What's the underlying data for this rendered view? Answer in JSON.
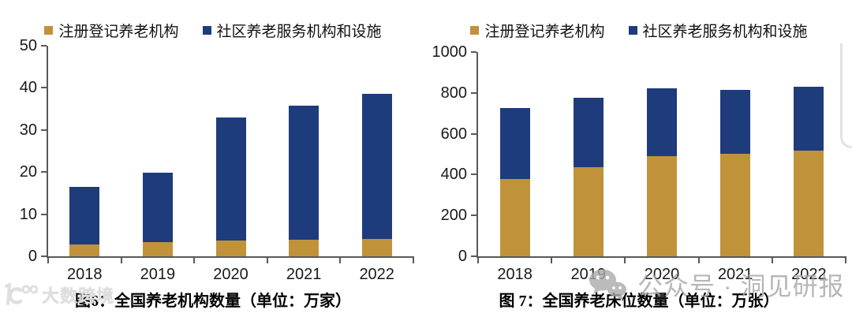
{
  "colors": {
    "bar_gold": "#C0923A",
    "bar_blue": "#1E3B7B",
    "axis": "#595959",
    "watermark_gray": "#A6A6A6",
    "brand_gray": "#DFDFDF"
  },
  "charts": [
    {
      "caption": "图6：全国养老机构数量（单位：万家）",
      "chart_data": {
        "type": "bar",
        "stacked": true,
        "title": "全国养老机构数量（单位：万家）",
        "xlabel": "",
        "ylabel": "",
        "categories": [
          "2018",
          "2019",
          "2020",
          "2021",
          "2022"
        ],
        "series": [
          {
            "name": "注册登记养老机构",
            "color": "#C0923A",
            "values": [
              2.9,
              3.4,
              3.8,
              4.0,
              4.1
            ]
          },
          {
            "name": "社区养老服务机构和设施",
            "color": "#1E3B7B",
            "values": [
              13.5,
              16.5,
              29.1,
              31.8,
              34.5
            ]
          }
        ],
        "totals": [
          16.4,
          19.9,
          32.9,
          35.8,
          38.6
        ],
        "ylim": [
          0,
          50
        ],
        "yticks": [
          0,
          10,
          20,
          30,
          40,
          50
        ],
        "grid": false,
        "legend_position": "top"
      }
    },
    {
      "caption": "图 7：全国养老床位数量（单位：万张）",
      "chart_data": {
        "type": "bar",
        "stacked": true,
        "title": "全国养老床位数量（单位：万张）",
        "xlabel": "",
        "ylabel": "",
        "categories": [
          "2018",
          "2019",
          "2020",
          "2021",
          "2022"
        ],
        "series": [
          {
            "name": "注册登记养老机构",
            "color": "#C0923A",
            "values": [
              380,
              438,
              490,
              503,
              518
            ]
          },
          {
            "name": "社区养老服务机构和设施",
            "color": "#1E3B7B",
            "values": [
              347,
              337,
              331,
              313,
              311
            ]
          }
        ],
        "totals": [
          727,
          775,
          821,
          816,
          829
        ],
        "ylim": [
          0,
          1000
        ],
        "yticks": [
          0,
          200,
          400,
          600,
          800,
          1000
        ],
        "grid": false,
        "legend_position": "top"
      }
    }
  ],
  "watermarks": {
    "brand_text": "大数跨境",
    "wechat_text": "公众号 · 洞见研报"
  }
}
